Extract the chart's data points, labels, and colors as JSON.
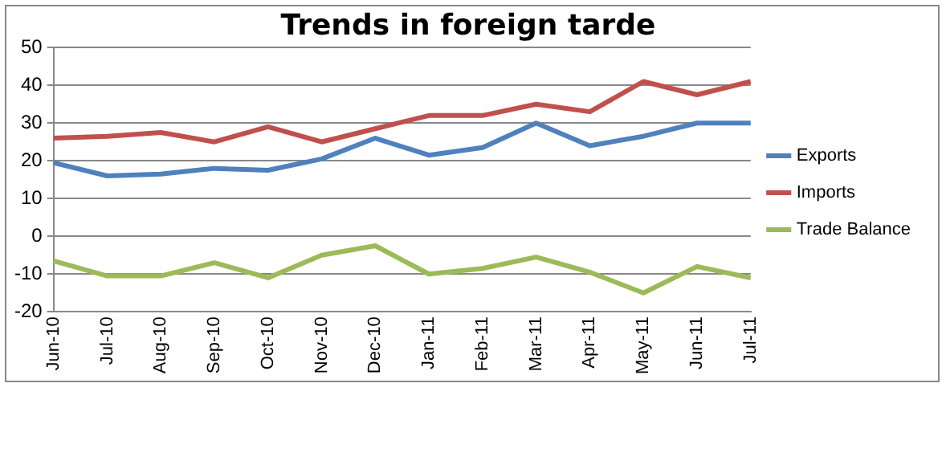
{
  "chart_data": {
    "type": "line",
    "title": "Trends in foreign tarde",
    "categories": [
      "Jun-10",
      "Jul-10",
      "Aug-10",
      "Sep-10",
      "Oct-10",
      "Nov-10",
      "Dec-10",
      "Jan-11",
      "Feb-11",
      "Mar-11",
      "Apr-11",
      "May-11",
      "Jun-11",
      "Jul-11"
    ],
    "series": [
      {
        "name": "Exports",
        "color": "#4f81bd",
        "values": [
          19.5,
          16,
          16.5,
          18,
          17.5,
          20.5,
          26,
          21.5,
          23.5,
          30,
          24,
          26.5,
          30,
          30
        ]
      },
      {
        "name": "Imports",
        "color": "#c0504d",
        "values": [
          26,
          26.5,
          27.5,
          25,
          29,
          25,
          28.5,
          32,
          32,
          35,
          33,
          41,
          37.5,
          41
        ]
      },
      {
        "name": "Trade Balance",
        "color": "#9bbb59",
        "values": [
          -6.5,
          -10.5,
          -10.5,
          -7,
          -11,
          -5,
          -2.5,
          -10,
          -8.5,
          -5.5,
          -9.5,
          -15,
          -8,
          -11
        ]
      }
    ],
    "ylim": [
      -20,
      50
    ],
    "yticks": [
      -20,
      -10,
      0,
      10,
      20,
      30,
      40,
      50
    ],
    "grid": "y",
    "legend": "right",
    "marker": "none",
    "line_style": "solid"
  }
}
